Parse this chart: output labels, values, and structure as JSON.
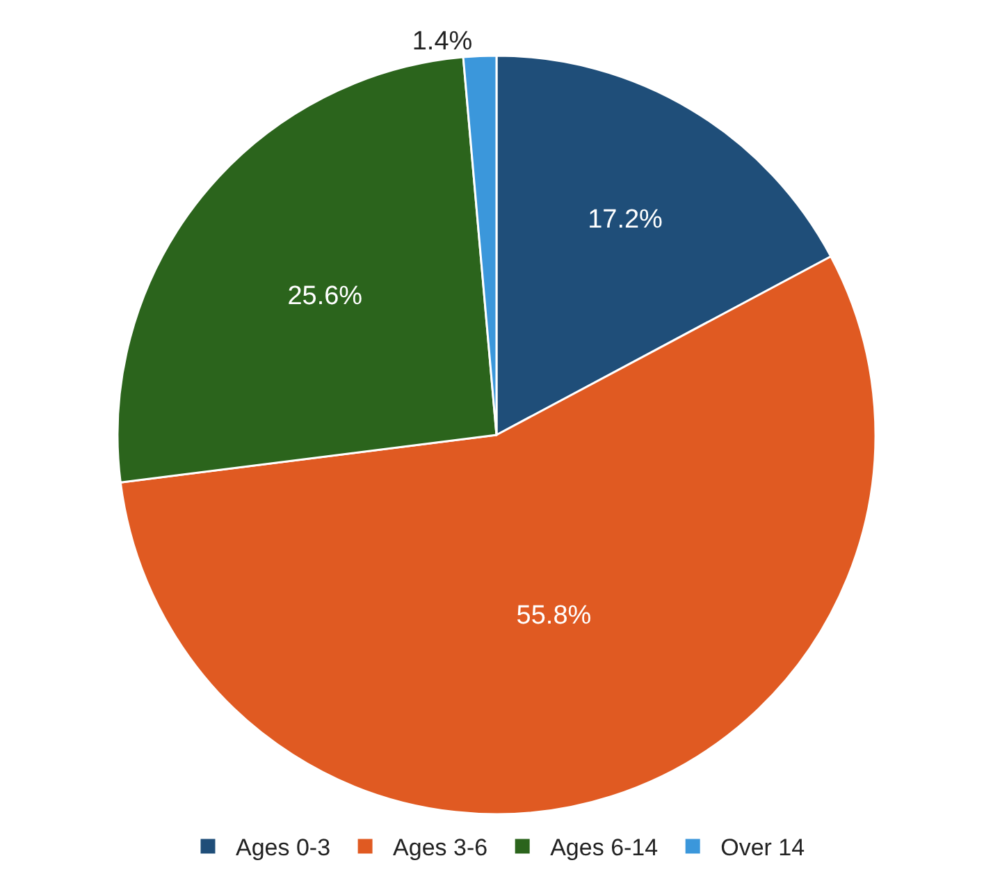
{
  "chart_data": {
    "type": "pie",
    "categories": [
      "Ages 0-3",
      "Ages 3-6",
      "Ages 6-14",
      "Over 14"
    ],
    "values": [
      17.2,
      55.8,
      25.6,
      1.4
    ],
    "value_labels": [
      "17.2%",
      "55.8%",
      "25.6%",
      "1.4%"
    ],
    "colors": [
      "#1f4e79",
      "#e05a22",
      "#2b641c",
      "#3b97db"
    ],
    "legend": "bottom"
  }
}
